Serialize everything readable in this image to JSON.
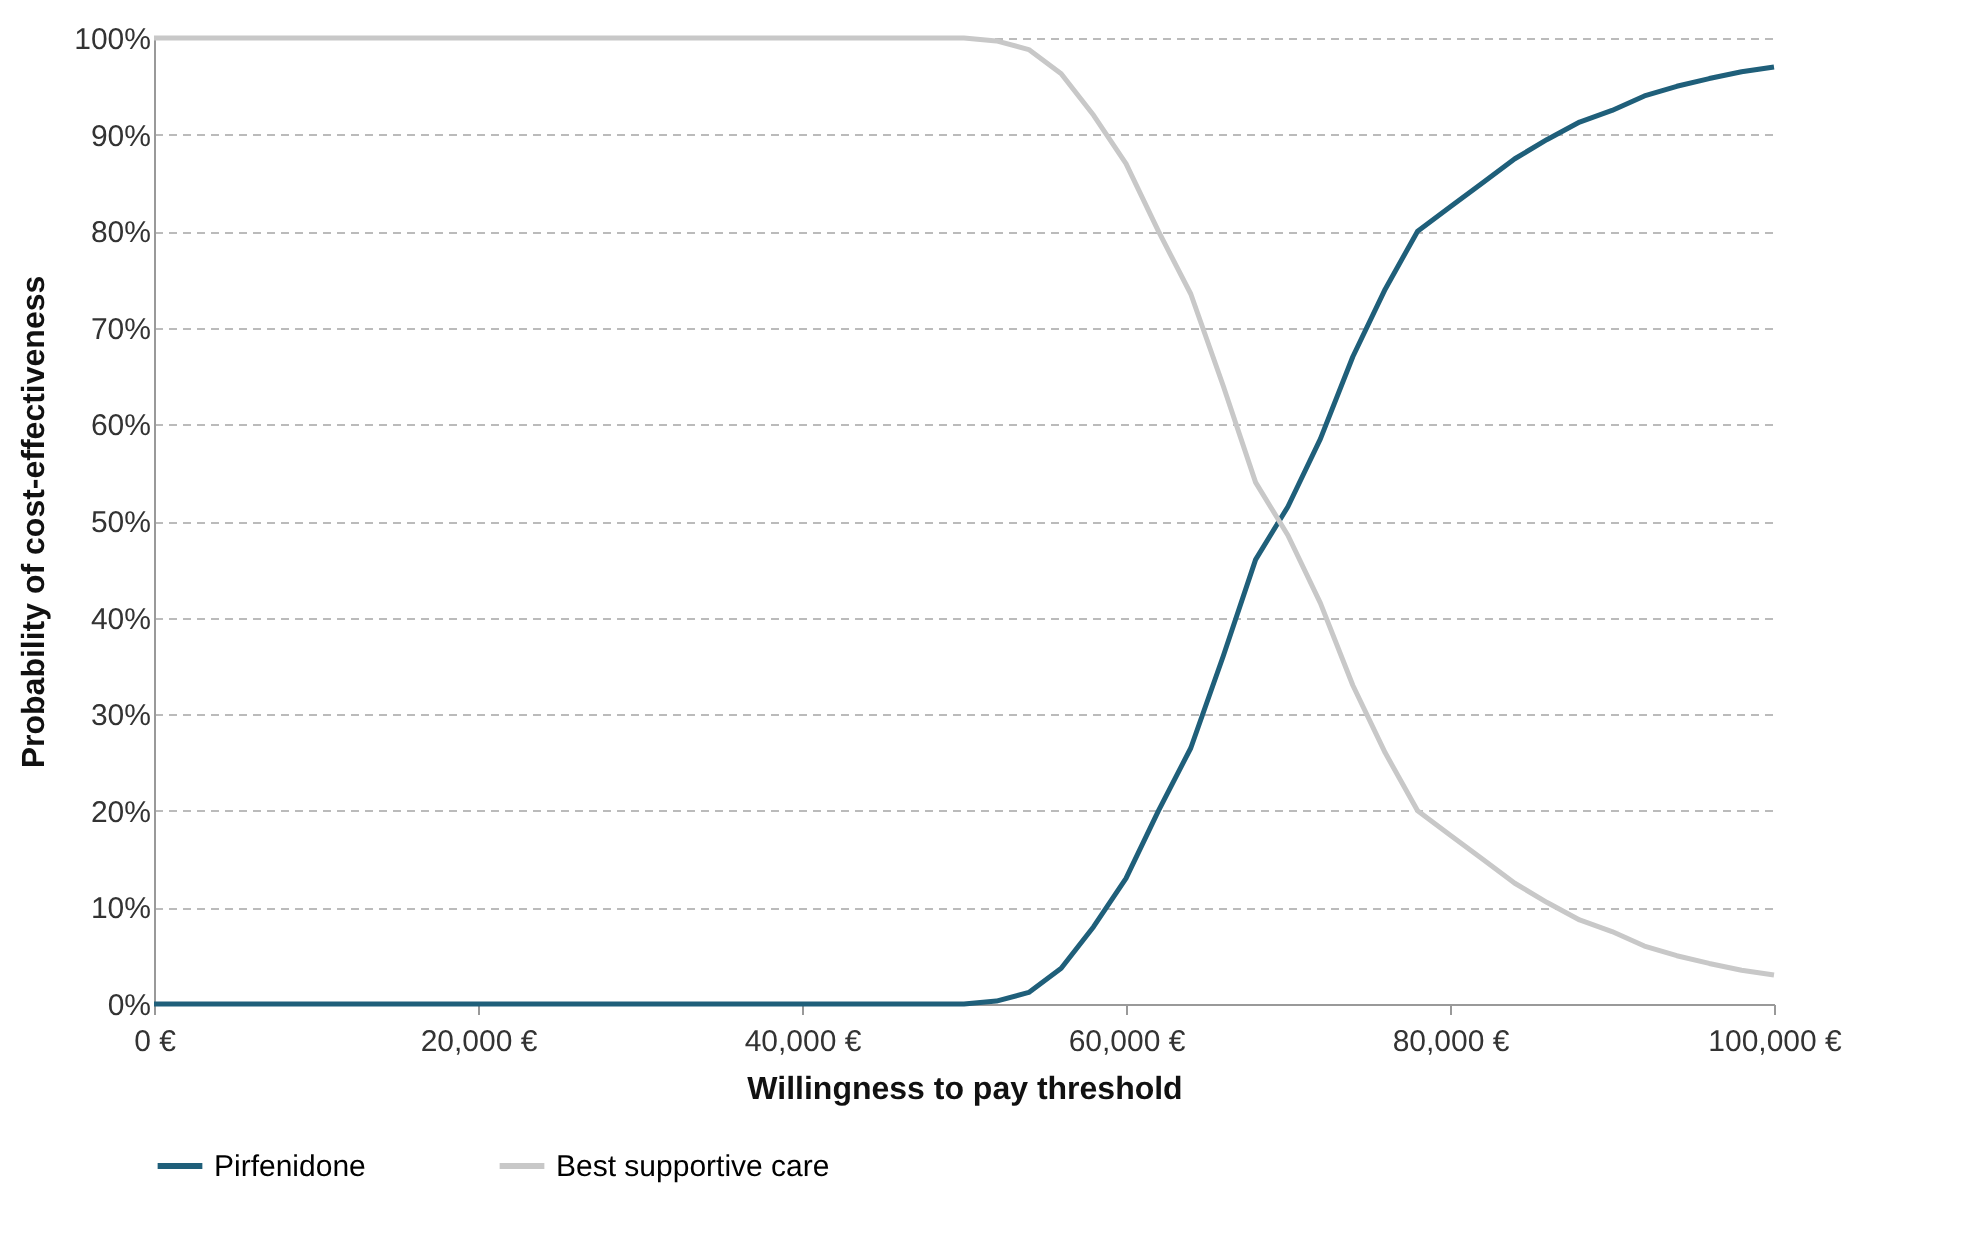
{
  "chart_data": {
    "type": "line",
    "xlabel": "Willingness to pay threshold",
    "ylabel": "Probability of cost-effectiveness",
    "x": [
      0,
      10000,
      20000,
      30000,
      40000,
      50000,
      52000,
      54000,
      56000,
      58000,
      60000,
      62000,
      64000,
      66000,
      68000,
      70000,
      72000,
      74000,
      76000,
      78000,
      80000,
      82000,
      84000,
      86000,
      88000,
      90000,
      92000,
      94000,
      96000,
      98000,
      100000
    ],
    "series": [
      {
        "name": "Pirfenidone",
        "color": "#1f5f7a",
        "values": [
          0,
          0,
          0,
          0,
          0,
          0,
          0.3,
          1.2,
          3.7,
          8,
          13,
          20,
          26.5,
          36,
          46,
          51.5,
          58.5,
          67,
          74,
          80,
          82.5,
          85,
          87.5,
          89.5,
          91.3,
          92.5,
          94,
          95,
          95.8,
          96.5,
          97
        ]
      },
      {
        "name": "Best supportive care",
        "color": "#c8c8c8",
        "values": [
          100,
          100,
          100,
          100,
          100,
          100,
          99.7,
          98.8,
          96.3,
          92,
          87,
          80,
          73.5,
          64,
          54,
          48.5,
          41.5,
          33,
          26,
          20,
          17.5,
          15,
          12.5,
          10.5,
          8.7,
          7.5,
          6,
          5,
          4.2,
          3.5,
          3
        ]
      }
    ],
    "xlim": [
      0,
      100000
    ],
    "ylim": [
      0,
      100
    ],
    "xticks": [
      {
        "value": 0,
        "label": "0 €"
      },
      {
        "value": 20000,
        "label": "20,000 €"
      },
      {
        "value": 40000,
        "label": "40,000 €"
      },
      {
        "value": 60000,
        "label": "60,000 €"
      },
      {
        "value": 80000,
        "label": "80,000 €"
      },
      {
        "value": 100000,
        "label": "100,000 €"
      }
    ],
    "yticks": [
      {
        "value": 0,
        "label": "0%"
      },
      {
        "value": 10,
        "label": "10%"
      },
      {
        "value": 20,
        "label": "20%"
      },
      {
        "value": 30,
        "label": "30%"
      },
      {
        "value": 40,
        "label": "40%"
      },
      {
        "value": 50,
        "label": "50%"
      },
      {
        "value": 60,
        "label": "60%"
      },
      {
        "value": 70,
        "label": "70%"
      },
      {
        "value": 80,
        "label": "80%"
      },
      {
        "value": 90,
        "label": "90%"
      },
      {
        "value": 100,
        "label": "100%"
      }
    ],
    "grid": "y",
    "legend": "bottom",
    "line_style": "solid",
    "marker": "none"
  }
}
